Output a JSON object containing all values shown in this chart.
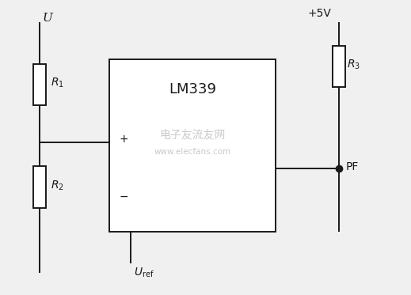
{
  "bg_color": "#f0f0f0",
  "line_color": "#1a1a1a",
  "text_color": "#1a1a1a",
  "title": "LM339",
  "label_U": "U",
  "label_R1": "R",
  "label_R1_sub": "1",
  "label_R2": "R",
  "label_R2_sub": "2",
  "label_R3": "R",
  "label_R3_sub": "3",
  "label_plus5V": "+5V",
  "label_PF": "PF",
  "label_Uref": "U",
  "label_Uref_sub": "ref",
  "label_plus": "+",
  "label_minus": "−",
  "watermark1": "电子友流友网",
  "watermark2": "www.elecfans.com"
}
